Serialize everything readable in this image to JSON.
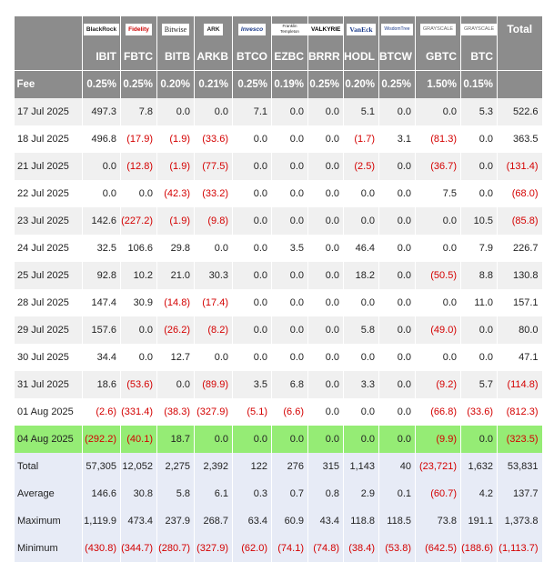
{
  "header": {
    "logos": [
      "BlackRock",
      "Fidelity",
      "Bitwise",
      "ARK",
      "Invesco",
      "Franklin Templeton",
      "VALKYRIE",
      "VanEck",
      "WisdomTree",
      "GRAYSCALE",
      "GRAYSCALE"
    ],
    "total_label": "Total",
    "tickers": [
      "IBIT",
      "FBTC",
      "BITB",
      "ARKB",
      "BTCO",
      "EZBC",
      "BRRR",
      "HODL",
      "BTCW",
      "GBTC",
      "BTC"
    ],
    "fee_label": "Fee",
    "fees": [
      "0.25%",
      "0.25%",
      "0.20%",
      "0.21%",
      "0.25%",
      "0.19%",
      "0.25%",
      "0.20%",
      "0.25%",
      "1.50%",
      "0.15%"
    ]
  },
  "rows": [
    [
      "17 Jul 2025",
      "497.3",
      "7.8",
      "0.0",
      "0.0",
      "7.1",
      "0.0",
      "0.0",
      "5.1",
      "0.0",
      "0.0",
      "5.3",
      "522.6"
    ],
    [
      "18 Jul 2025",
      "496.8",
      "(17.9)",
      "(1.9)",
      "(33.6)",
      "0.0",
      "0.0",
      "0.0",
      "(1.7)",
      "3.1",
      "(81.3)",
      "0.0",
      "363.5"
    ],
    [
      "21 Jul 2025",
      "0.0",
      "(12.8)",
      "(1.9)",
      "(77.5)",
      "0.0",
      "0.0",
      "0.0",
      "(2.5)",
      "0.0",
      "(36.7)",
      "0.0",
      "(131.4)"
    ],
    [
      "22 Jul 2025",
      "0.0",
      "0.0",
      "(42.3)",
      "(33.2)",
      "0.0",
      "0.0",
      "0.0",
      "0.0",
      "0.0",
      "7.5",
      "0.0",
      "(68.0)"
    ],
    [
      "23 Jul 2025",
      "142.6",
      "(227.2)",
      "(1.9)",
      "(9.8)",
      "0.0",
      "0.0",
      "0.0",
      "0.0",
      "0.0",
      "0.0",
      "10.5",
      "(85.8)"
    ],
    [
      "24 Jul 2025",
      "32.5",
      "106.6",
      "29.8",
      "0.0",
      "0.0",
      "3.5",
      "0.0",
      "46.4",
      "0.0",
      "0.0",
      "7.9",
      "226.7"
    ],
    [
      "25 Jul 2025",
      "92.8",
      "10.2",
      "21.0",
      "30.3",
      "0.0",
      "0.0",
      "0.0",
      "18.2",
      "0.0",
      "(50.5)",
      "8.8",
      "130.8"
    ],
    [
      "28 Jul 2025",
      "147.4",
      "30.9",
      "(14.8)",
      "(17.4)",
      "0.0",
      "0.0",
      "0.0",
      "0.0",
      "0.0",
      "0.0",
      "11.0",
      "157.1"
    ],
    [
      "29 Jul 2025",
      "157.6",
      "0.0",
      "(26.2)",
      "(8.2)",
      "0.0",
      "0.0",
      "0.0",
      "5.8",
      "0.0",
      "(49.0)",
      "0.0",
      "80.0"
    ],
    [
      "30 Jul 2025",
      "34.4",
      "0.0",
      "12.7",
      "0.0",
      "0.0",
      "0.0",
      "0.0",
      "0.0",
      "0.0",
      "0.0",
      "0.0",
      "47.1"
    ],
    [
      "31 Jul 2025",
      "18.6",
      "(53.6)",
      "0.0",
      "(89.9)",
      "3.5",
      "6.8",
      "0.0",
      "3.3",
      "0.0",
      "(9.2)",
      "5.7",
      "(114.8)"
    ],
    [
      "01 Aug 2025",
      "(2.6)",
      "(331.4)",
      "(38.3)",
      "(327.9)",
      "(5.1)",
      "(6.6)",
      "0.0",
      "0.0",
      "0.0",
      "(66.8)",
      "(33.6)",
      "(812.3)"
    ],
    [
      "04 Aug 2025",
      "(292.2)",
      "(40.1)",
      "18.7",
      "0.0",
      "0.0",
      "0.0",
      "0.0",
      "0.0",
      "0.0",
      "(9.9)",
      "0.0",
      "(323.5)"
    ]
  ],
  "summary": [
    [
      "Total",
      "57,305",
      "12,052",
      "2,275",
      "2,392",
      "122",
      "276",
      "315",
      "1,143",
      "40",
      "(23,721)",
      "1,632",
      "53,831"
    ],
    [
      "Average",
      "146.6",
      "30.8",
      "5.8",
      "6.1",
      "0.3",
      "0.7",
      "0.8",
      "2.9",
      "0.1",
      "(60.7)",
      "4.2",
      "137.7"
    ],
    [
      "Maximum",
      "1,119.9",
      "473.4",
      "237.9",
      "268.7",
      "63.4",
      "60.9",
      "43.4",
      "118.8",
      "118.5",
      "73.8",
      "191.1",
      "1,373.8"
    ],
    [
      "Minimum",
      "(430.8)",
      "(344.7)",
      "(280.7)",
      "(327.9)",
      "(62.0)",
      "(74.1)",
      "(74.8)",
      "(38.4)",
      "(53.8)",
      "(642.5)",
      "(188.6)",
      "(1,113.7)"
    ]
  ]
}
